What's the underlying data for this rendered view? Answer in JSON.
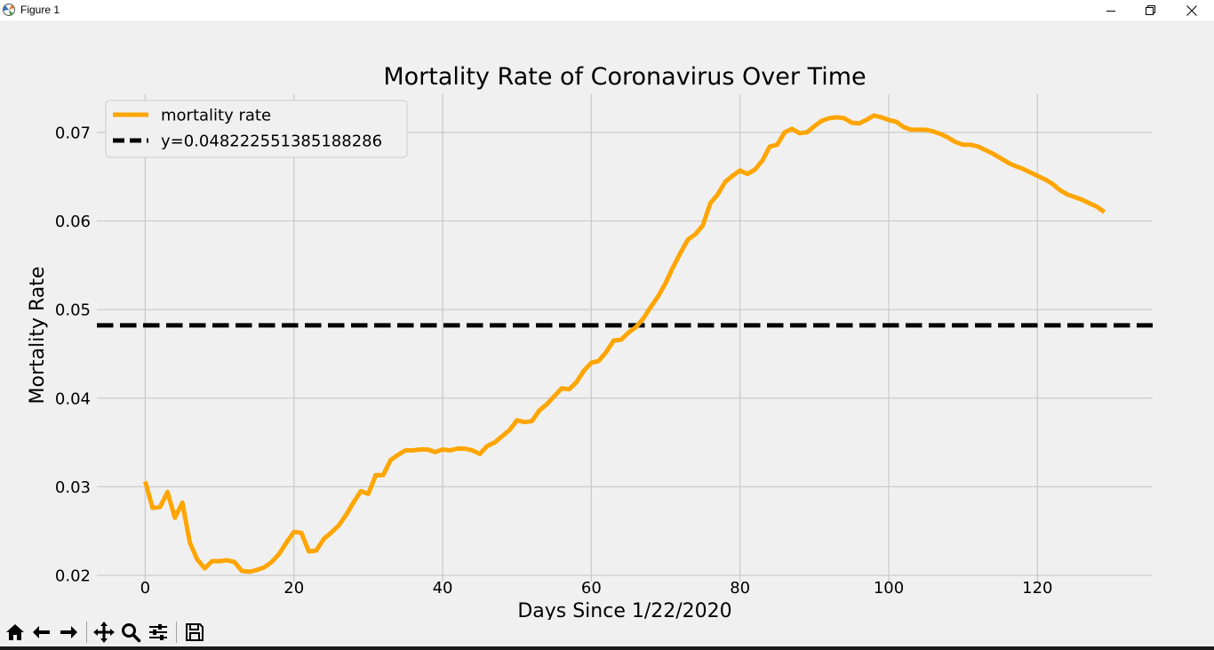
{
  "window": {
    "title": "Figure 1",
    "controls": [
      "minimize-icon",
      "restore-icon",
      "close-icon"
    ]
  },
  "toolbar": {
    "buttons": [
      "home-icon",
      "back-icon",
      "forward-icon",
      "pan-icon",
      "zoom-icon",
      "configure-subplots-icon",
      "save-icon"
    ]
  },
  "chart_data": {
    "type": "line",
    "title": "Mortality Rate of Coronavirus Over Time",
    "xlabel": "Days Since 1/22/2020",
    "ylabel": "Mortality Rate",
    "xlim": [
      -6.5,
      135.5
    ],
    "ylim": [
      0.0193,
      0.0743
    ],
    "x_ticks": [
      0,
      20,
      40,
      60,
      80,
      100,
      120
    ],
    "x_tick_labels": [
      "0",
      "20",
      "40",
      "60",
      "80",
      "100",
      "120"
    ],
    "y_ticks": [
      0.02,
      0.03,
      0.04,
      0.05,
      0.06,
      0.07
    ],
    "y_tick_labels": [
      "0.02",
      "0.03",
      "0.04",
      "0.05",
      "0.06",
      "0.07"
    ],
    "grid": true,
    "legend_position": "upper-left",
    "background_color": "#f0f0f0",
    "grid_color": "#cbcbcb",
    "series": [
      {
        "name": "mortality rate",
        "style": "solid",
        "color": "#ffa500",
        "x": [
          0,
          1,
          2,
          3,
          4,
          5,
          6,
          7,
          8,
          9,
          10,
          11,
          12,
          13,
          14,
          15,
          16,
          17,
          18,
          19,
          20,
          21,
          22,
          23,
          24,
          25,
          26,
          27,
          28,
          29,
          30,
          31,
          32,
          33,
          34,
          35,
          36,
          37,
          38,
          39,
          40,
          41,
          42,
          43,
          44,
          45,
          46,
          47,
          48,
          49,
          50,
          51,
          52,
          53,
          54,
          55,
          56,
          57,
          58,
          59,
          60,
          61,
          62,
          63,
          64,
          65,
          66,
          67,
          68,
          69,
          70,
          71,
          72,
          73,
          74,
          75,
          76,
          77,
          78,
          79,
          80,
          81,
          82,
          83,
          84,
          85,
          86,
          87,
          88,
          89,
          90,
          91,
          92,
          93,
          94,
          95,
          96,
          97,
          98,
          99,
          100,
          101,
          102,
          103,
          104,
          105,
          106,
          107,
          108,
          109,
          110,
          111,
          112,
          113,
          114,
          115,
          116,
          117,
          118,
          119,
          120,
          121,
          122,
          123,
          124,
          125,
          126,
          127,
          128,
          129
        ],
        "y": [
          0.0306,
          0.0276,
          0.0277,
          0.0294,
          0.0265,
          0.0282,
          0.0237,
          0.0218,
          0.0208,
          0.0216,
          0.0216,
          0.0217,
          0.0215,
          0.0205,
          0.0204,
          0.0206,
          0.0209,
          0.0215,
          0.0224,
          0.0237,
          0.0249,
          0.0248,
          0.0227,
          0.0228,
          0.0241,
          0.0248,
          0.0256,
          0.0268,
          0.0282,
          0.0295,
          0.0292,
          0.0313,
          0.0313,
          0.033,
          0.0336,
          0.0341,
          0.0341,
          0.0342,
          0.0342,
          0.0339,
          0.0342,
          0.0341,
          0.0343,
          0.0343,
          0.0341,
          0.0337,
          0.0346,
          0.035,
          0.0357,
          0.0364,
          0.0375,
          0.0373,
          0.0374,
          0.0386,
          0.0393,
          0.0402,
          0.0411,
          0.041,
          0.0418,
          0.0431,
          0.044,
          0.0442,
          0.0452,
          0.0465,
          0.0466,
          0.0474,
          0.048,
          0.049,
          0.0503,
          0.0515,
          0.053,
          0.0548,
          0.0564,
          0.0579,
          0.0585,
          0.0595,
          0.062,
          0.063,
          0.0644,
          0.0651,
          0.0657,
          0.0653,
          0.0658,
          0.0668,
          0.0684,
          0.0686,
          0.07,
          0.0704,
          0.0699,
          0.07,
          0.0707,
          0.0713,
          0.0716,
          0.0717,
          0.0716,
          0.0711,
          0.071,
          0.0714,
          0.0719,
          0.0717,
          0.0714,
          0.0712,
          0.0706,
          0.0703,
          0.0703,
          0.0703,
          0.0701,
          0.0698,
          0.0694,
          0.0689,
          0.0686,
          0.0686,
          0.0684,
          0.068,
          0.0676,
          0.0671,
          0.0666,
          0.0662,
          0.0659,
          0.0655,
          0.0651,
          0.0647,
          0.0642,
          0.0635,
          0.063,
          0.0627,
          0.0624,
          0.062,
          0.0616,
          0.061
        ]
      },
      {
        "name": "y=0.048222551385188286",
        "style": "dashed",
        "color": "#000000",
        "constant": 0.048222551385188286
      }
    ]
  }
}
